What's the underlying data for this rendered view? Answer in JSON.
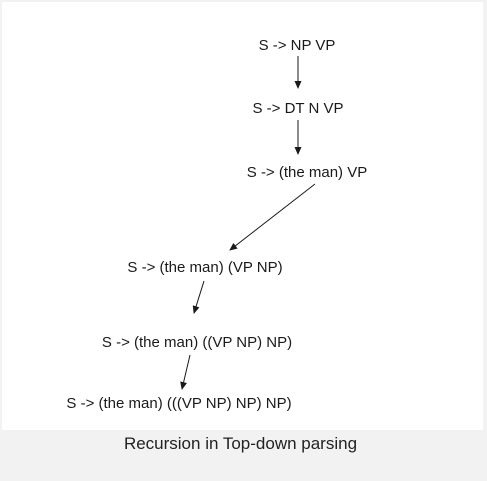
{
  "diagram": {
    "nodes": [
      "S -> NP VP",
      "S -> DT N VP",
      "S -> (the man) VP",
      "S -> (the man) (VP NP)",
      "S -> (the man) ((VP NP) NP)",
      "S -> (the man) (((VP NP) NP) NP)"
    ],
    "caption": "Recursion in Top-down parsing"
  }
}
